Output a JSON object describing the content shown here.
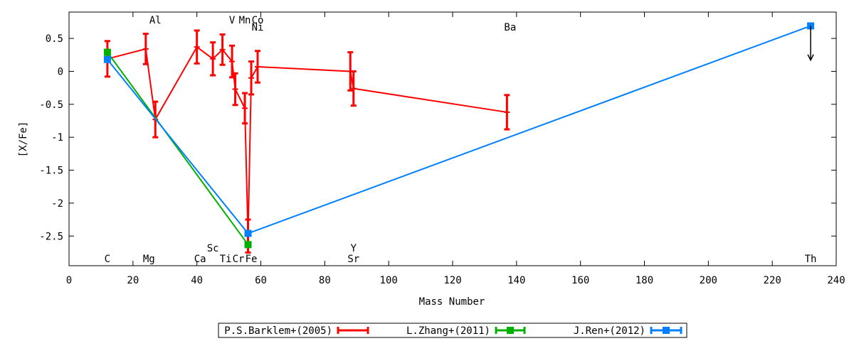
{
  "chart_data": {
    "type": "line",
    "title": "",
    "xlabel": "Mass Number",
    "ylabel": "[X/Fe]",
    "xlim": [
      0,
      240
    ],
    "ylim": [
      -2.95,
      0.9
    ],
    "xticks": [
      0,
      20,
      40,
      60,
      80,
      100,
      120,
      140,
      160,
      180,
      200,
      220,
      240
    ],
    "yticks": [
      0.5,
      0,
      -0.5,
      -1,
      -1.5,
      -2,
      -2.5
    ],
    "ytick_labels": [
      "0.5",
      "0",
      "-0.5",
      "-1",
      "-1.5",
      "-2",
      "-2.5"
    ],
    "grid": false,
    "legend_position": "bottom",
    "series": [
      {
        "name": "P.S.Barklem+(2005)",
        "color": "#ff0000",
        "error_bars": true,
        "points": [
          {
            "x": 12,
            "y": 0.19,
            "err": 0.27
          },
          {
            "x": 24,
            "y": 0.34,
            "err": 0.23
          },
          {
            "x": 27,
            "y": -0.73,
            "err": 0.27
          },
          {
            "x": 40,
            "y": 0.37,
            "err": 0.25
          },
          {
            "x": 45,
            "y": 0.19,
            "err": 0.25
          },
          {
            "x": 48,
            "y": 0.33,
            "err": 0.23
          },
          {
            "x": 51,
            "y": 0.15,
            "err": 0.24
          },
          {
            "x": 52,
            "y": -0.27,
            "err": 0.24
          },
          {
            "x": 55,
            "y": -0.56,
            "err": 0.23
          },
          {
            "x": 56,
            "y": -2.5,
            "err": 0.25
          },
          {
            "x": 57,
            "y": -0.1,
            "err": 0.25
          },
          {
            "x": 59,
            "y": 0.07,
            "err": 0.24
          },
          {
            "x": 88,
            "y": 0.0,
            "err": 0.29
          },
          {
            "x": 89,
            "y": -0.26,
            "err": 0.26
          },
          {
            "x": 137,
            "y": -0.62,
            "err": 0.26
          }
        ]
      },
      {
        "name": "L.Zhang+(2011)",
        "color": "#00b000",
        "error_bars": true,
        "points": [
          {
            "x": 12,
            "y": 0.29,
            "err": 0.03
          },
          {
            "x": 56,
            "y": -2.63,
            "err": 0.03
          }
        ]
      },
      {
        "name": "J.Ren+(2012)",
        "color": "#0080ff",
        "error_bars": true,
        "points": [
          {
            "x": 12,
            "y": 0.18,
            "err": 0.02
          },
          {
            "x": 56,
            "y": -2.46,
            "err": 0.02
          },
          {
            "x": 232,
            "y": 0.69,
            "err": 0.0
          }
        ]
      }
    ],
    "upper_limit_arrow": {
      "x": 232,
      "y_from": 0.69,
      "y_to": 0.17
    },
    "element_labels_top": [
      {
        "text": "Al",
        "x": 27,
        "row": 1
      },
      {
        "text": "V",
        "x": 51,
        "row": 1
      },
      {
        "text": "Mn",
        "x": 55,
        "row": 1
      },
      {
        "text": "Co",
        "x": 59,
        "row": 1
      },
      {
        "text": "Ni",
        "x": 59,
        "row": 2
      },
      {
        "text": "Ba",
        "x": 138,
        "row": 2
      }
    ],
    "element_labels_bottom": [
      {
        "text": "Sc",
        "x": 45,
        "row": 1
      },
      {
        "text": "Y",
        "x": 89,
        "row": 1
      },
      {
        "text": "C",
        "x": 12,
        "row": 2
      },
      {
        "text": "Mg",
        "x": 25,
        "row": 2
      },
      {
        "text": "Ca",
        "x": 41,
        "row": 2
      },
      {
        "text": "Ti",
        "x": 49,
        "row": 2
      },
      {
        "text": "Cr",
        "x": 53,
        "row": 2
      },
      {
        "text": "Fe",
        "x": 57,
        "row": 2
      },
      {
        "text": "Sr",
        "x": 89,
        "row": 2
      },
      {
        "text": "Th",
        "x": 232,
        "row": 2
      }
    ]
  }
}
